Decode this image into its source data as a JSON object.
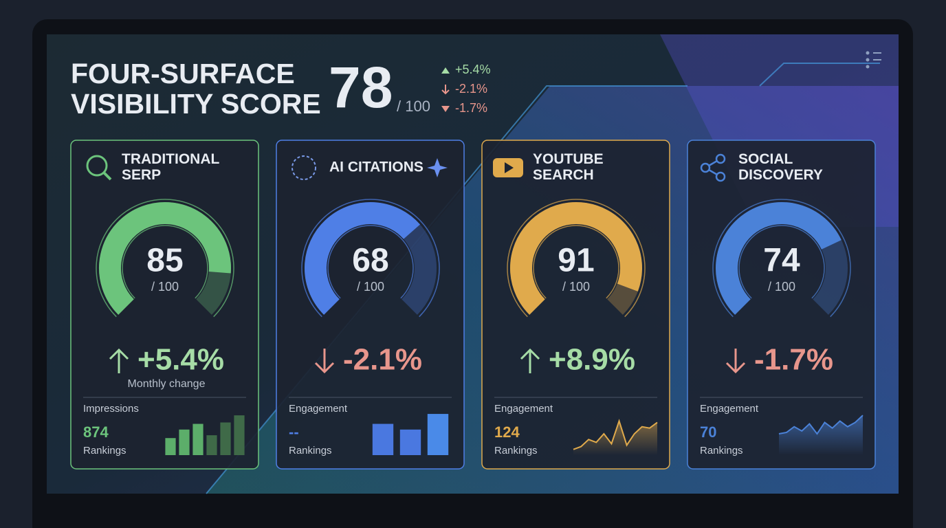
{
  "header": {
    "title_lines": [
      "FOUR-SURFACE",
      "VISIBILITY SCORE"
    ],
    "score": 78,
    "score_max_label": "/ 100",
    "deltas": [
      {
        "text": "+5.4%",
        "direction": "up"
      },
      {
        "text": "-2.1%",
        "direction": "down"
      },
      {
        "text": "-1.7%",
        "direction": "down"
      }
    ]
  },
  "cards": [
    {
      "title_lines": [
        "TRADITIONAL",
        "SERP"
      ],
      "color": "#6cc47c",
      "score": 85,
      "gauge_max": 100,
      "max_label": "/ 100",
      "change": "+5.4%",
      "direction": "up",
      "change_note": "Monthly change",
      "metric_label": "Impressions",
      "metric_value": "874",
      "rankings_label": "Rankings",
      "spark": {
        "type": "bar",
        "values": [
          24,
          36,
          44,
          28,
          46,
          56
        ],
        "ylim": [
          0,
          60
        ],
        "colors": [
          "#5cae6a",
          "#5cae6a",
          "#5cae6a",
          "#3f6a48",
          "#3f6a48",
          "#3f6a48"
        ]
      }
    },
    {
      "title_lines": [
        "AI CITATIONS"
      ],
      "color": "#4f7fe6",
      "score": 68,
      "gauge_max": 100,
      "max_label": "/ 100",
      "change": "-2.1%",
      "direction": "down",
      "metric_label": "Engagement",
      "metric_value": "--",
      "rankings_label": "Rankings",
      "spark": {
        "type": "bar",
        "values": [
          44,
          36,
          58
        ],
        "ylim": [
          0,
          60
        ],
        "colors": [
          "#4a78e0",
          "#4a78e0",
          "#4a8ae8"
        ]
      }
    },
    {
      "title_lines": [
        "YOUTUBE",
        "SEARCH"
      ],
      "color": "#e0aa4c",
      "score": 91,
      "gauge_max": 100,
      "max_label": "/ 100",
      "change": "+8.9%",
      "direction": "up",
      "metric_label": "Engagement",
      "metric_value": "124",
      "rankings_label": "Rankings",
      "spark": {
        "type": "line",
        "values": [
          8,
          12,
          22,
          18,
          30,
          16,
          48,
          14,
          30,
          40,
          38,
          46
        ],
        "ylim": [
          0,
          60
        ]
      }
    },
    {
      "title_lines": [
        "SOCIAL",
        "DISCOVERY"
      ],
      "color": "#4b82d8",
      "score": 74,
      "gauge_max": 100,
      "max_label": "/ 100",
      "change": "-1.7%",
      "direction": "down",
      "metric_label": "Engagement",
      "metric_value": "70",
      "rankings_label": "Rankings",
      "spark": {
        "type": "line",
        "values": [
          30,
          32,
          40,
          34,
          44,
          30,
          46,
          38,
          48,
          40,
          46,
          56
        ],
        "ylim": [
          0,
          60
        ]
      }
    }
  ]
}
